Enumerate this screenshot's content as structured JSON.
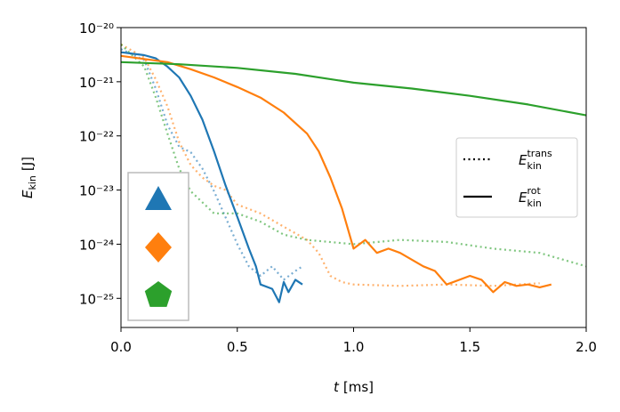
{
  "chart_data": {
    "type": "line",
    "x_label": {
      "symbol": "t",
      "unit": "[ms]"
    },
    "y_label": {
      "symbol": "E",
      "subscript": "kin",
      "unit": "[J]"
    },
    "xlim": [
      0,
      2.0
    ],
    "xticks": [
      {
        "value": 0,
        "label": "0.0"
      },
      0.5,
      {
        "value": 1,
        "label": "1.0"
      },
      1.5,
      {
        "value": 2,
        "label": "2.0"
      }
    ],
    "ylim": [
      2.9e-26,
      1e-20
    ],
    "yscale": "log",
    "yticks": [
      {
        "value": 1e-25,
        "label": "10⁻²⁵"
      },
      {
        "value": 1e-24,
        "label": "10⁻²⁴"
      },
      {
        "value": 1e-23,
        "label": "10⁻²³"
      },
      {
        "value": 1e-22,
        "label": "10⁻²²"
      },
      {
        "value": 1e-21,
        "label": "10⁻²¹"
      },
      {
        "value": 1e-20,
        "label": "10⁻²⁰"
      }
    ],
    "series": [
      {
        "color": "#1f77b4",
        "linestyle": "dotted",
        "alpha": 0.6,
        "x": [
          0,
          0.1,
          0.15,
          0.2,
          0.25,
          0.3,
          0.35,
          0.4,
          0.45,
          0.5,
          0.55,
          0.6,
          0.65,
          0.7,
          0.75,
          0.78
        ],
        "values": [
          4e-21,
          2.5e-21,
          7.4e-22,
          1.6e-22,
          6.3e-23,
          5e-23,
          2.5e-23,
          9.5e-24,
          3.1e-24,
          1e-24,
          3.9e-25,
          2.6e-25,
          3.9e-25,
          2.2e-25,
          3.2e-25,
          3.9e-25
        ]
      },
      {
        "color": "#ff7f0e",
        "linestyle": "dotted",
        "alpha": 0.6,
        "x": [
          0,
          0.1,
          0.15,
          0.2,
          0.25,
          0.3,
          0.35,
          0.4,
          0.45,
          0.5,
          0.6,
          0.7,
          0.8,
          0.85,
          0.9,
          0.95,
          1.0,
          1.2,
          1.4,
          1.6,
          1.8
        ],
        "values": [
          4.9e-21,
          2.8e-21,
          1.1e-21,
          3.5e-22,
          7.7e-23,
          2.9e-23,
          1.7e-23,
          1.2e-23,
          1e-23,
          5.4e-24,
          3.7e-24,
          2.1e-24,
          1.2e-24,
          6.9e-25,
          2.6e-25,
          2e-25,
          1.8e-25,
          1.7e-25,
          1.8e-25,
          1.7e-25,
          1.9e-25
        ]
      },
      {
        "color": "#2ca02c",
        "linestyle": "dotted",
        "alpha": 0.6,
        "x": [
          0,
          0.1,
          0.15,
          0.2,
          0.25,
          0.3,
          0.4,
          0.5,
          0.6,
          0.7,
          0.8,
          1.0,
          1.2,
          1.4,
          1.6,
          1.8,
          2.0
        ],
        "values": [
          4.9e-21,
          1.9e-21,
          5.1e-22,
          1.1e-22,
          2.5e-23,
          9.5e-24,
          3.7e-24,
          3.7e-24,
          2.6e-24,
          1.5e-24,
          1.2e-24,
          1e-24,
          1.2e-24,
          1.1e-24,
          8.3e-25,
          6.9e-25,
          3.9e-25
        ]
      },
      {
        "color": "#1f77b4",
        "linestyle": "solid",
        "alpha": 1,
        "x": [
          0,
          0.1,
          0.15,
          0.2,
          0.25,
          0.3,
          0.35,
          0.4,
          0.45,
          0.5,
          0.55,
          0.58,
          0.6,
          0.65,
          0.68,
          0.7,
          0.72,
          0.75,
          0.78
        ],
        "values": [
          3.5e-21,
          3.1e-21,
          2.7e-21,
          1.9e-21,
          1.2e-21,
          5.5e-22,
          2e-22,
          5.2e-23,
          1.2e-23,
          3.2e-24,
          8.3e-25,
          3.9e-25,
          1.8e-25,
          1.5e-25,
          8.5e-26,
          2e-25,
          1.3e-25,
          2.2e-25,
          1.8e-25
        ]
      },
      {
        "color": "#ff7f0e",
        "linestyle": "solid",
        "alpha": 1,
        "x": [
          0,
          0.2,
          0.3,
          0.4,
          0.5,
          0.6,
          0.7,
          0.8,
          0.85,
          0.9,
          0.95,
          1.0,
          1.05,
          1.1,
          1.15,
          1.2,
          1.3,
          1.35,
          1.4,
          1.5,
          1.55,
          1.6,
          1.65,
          1.7,
          1.75,
          1.8,
          1.85
        ],
        "values": [
          3e-21,
          2.3e-21,
          1.7e-21,
          1.2e-21,
          8e-22,
          5.1e-22,
          2.7e-22,
          1.1e-22,
          5.2e-23,
          1.7e-23,
          4.6e-24,
          8.3e-25,
          1.2e-24,
          6.9e-25,
          8.3e-25,
          6.9e-25,
          3.9e-25,
          3.2e-25,
          1.8e-25,
          2.6e-25,
          2.2e-25,
          1.3e-25,
          2e-25,
          1.7e-25,
          1.8e-25,
          1.6e-25,
          1.8e-25
        ]
      },
      {
        "color": "#2ca02c",
        "linestyle": "solid",
        "alpha": 1,
        "x": [
          0,
          0.25,
          0.5,
          0.75,
          1.0,
          1.25,
          1.5,
          1.75,
          2.0
        ],
        "values": [
          2.3e-21,
          2.1e-21,
          1.8e-21,
          1.4e-21,
          9.6e-22,
          7.5e-22,
          5.5e-22,
          3.8e-22,
          2.4e-22
        ]
      }
    ],
    "legend": [
      {
        "base": "E",
        "sub": "kin",
        "sup": "trans",
        "linestyle": "dotted"
      },
      {
        "base": "E",
        "sub": "kin",
        "sup": "rot",
        "linestyle": "solid"
      }
    ],
    "legend_loc": "center right",
    "marker_legend": [
      {
        "marker": "triangle",
        "color": "#1f77b4"
      },
      {
        "marker": "diamond",
        "color": "#ff7f0e"
      },
      {
        "marker": "pentagon",
        "color": "#2ca02c"
      }
    ],
    "marker_legend_loc": "lower left"
  }
}
